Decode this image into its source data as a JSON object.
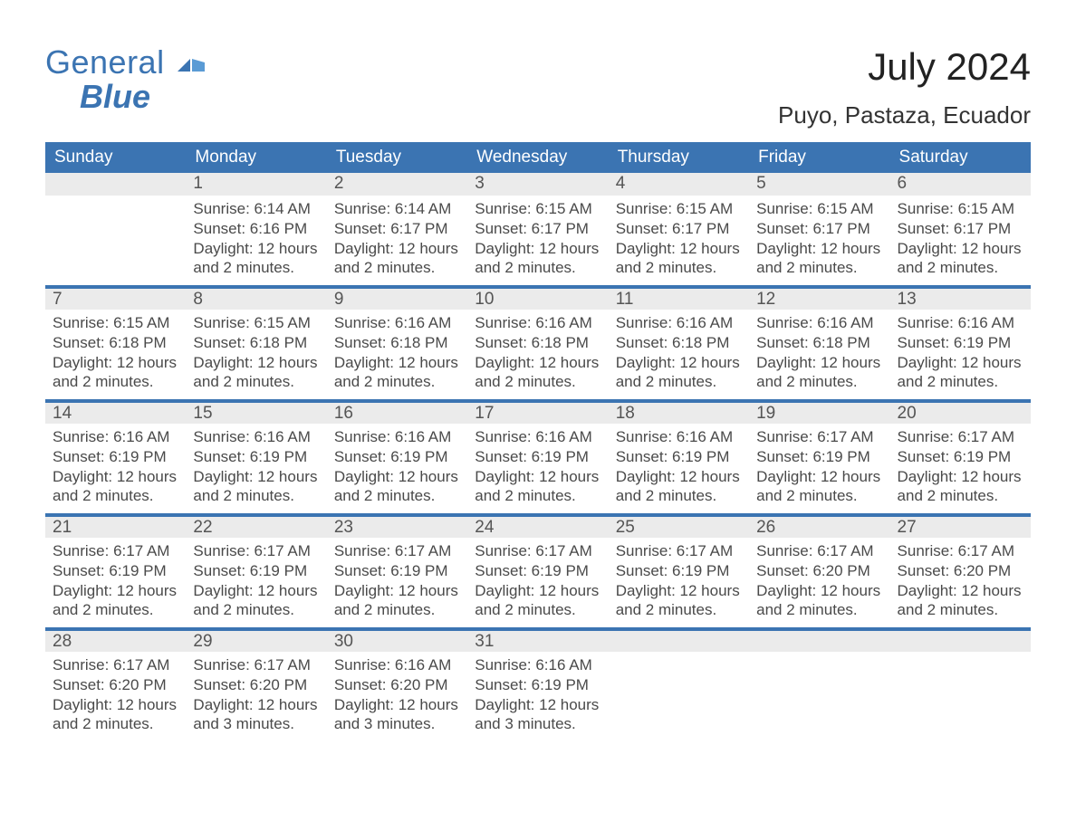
{
  "brand": {
    "word1": "General",
    "word2": "Blue"
  },
  "title": "July 2024",
  "location": "Puyo, Pastaza, Ecuador",
  "colors": {
    "brand_blue": "#3b74b2",
    "header_bg": "#3b74b2",
    "header_text": "#ffffff",
    "date_strip_bg": "#ebebeb",
    "rule_blue": "#3b74b2",
    "body_text": "#4a4a4a",
    "page_bg": "#ffffff"
  },
  "typography": {
    "title_fontsize_pt": 32,
    "location_fontsize_pt": 20,
    "weekday_fontsize_pt": 14,
    "date_fontsize_pt": 14,
    "cell_fontsize_pt": 13
  },
  "layout": {
    "type": "calendar-table",
    "columns": 7,
    "rows": 5,
    "first_weekday": "Sunday",
    "leading_blanks": 1
  },
  "weekdays": [
    "Sunday",
    "Monday",
    "Tuesday",
    "Wednesday",
    "Thursday",
    "Friday",
    "Saturday"
  ],
  "days": [
    {
      "date": "1",
      "sunrise": "Sunrise: 6:14 AM",
      "sunset": "Sunset: 6:16 PM",
      "daylight": "Daylight: 12 hours and 2 minutes."
    },
    {
      "date": "2",
      "sunrise": "Sunrise: 6:14 AM",
      "sunset": "Sunset: 6:17 PM",
      "daylight": "Daylight: 12 hours and 2 minutes."
    },
    {
      "date": "3",
      "sunrise": "Sunrise: 6:15 AM",
      "sunset": "Sunset: 6:17 PM",
      "daylight": "Daylight: 12 hours and 2 minutes."
    },
    {
      "date": "4",
      "sunrise": "Sunrise: 6:15 AM",
      "sunset": "Sunset: 6:17 PM",
      "daylight": "Daylight: 12 hours and 2 minutes."
    },
    {
      "date": "5",
      "sunrise": "Sunrise: 6:15 AM",
      "sunset": "Sunset: 6:17 PM",
      "daylight": "Daylight: 12 hours and 2 minutes."
    },
    {
      "date": "6",
      "sunrise": "Sunrise: 6:15 AM",
      "sunset": "Sunset: 6:17 PM",
      "daylight": "Daylight: 12 hours and 2 minutes."
    },
    {
      "date": "7",
      "sunrise": "Sunrise: 6:15 AM",
      "sunset": "Sunset: 6:18 PM",
      "daylight": "Daylight: 12 hours and 2 minutes."
    },
    {
      "date": "8",
      "sunrise": "Sunrise: 6:15 AM",
      "sunset": "Sunset: 6:18 PM",
      "daylight": "Daylight: 12 hours and 2 minutes."
    },
    {
      "date": "9",
      "sunrise": "Sunrise: 6:16 AM",
      "sunset": "Sunset: 6:18 PM",
      "daylight": "Daylight: 12 hours and 2 minutes."
    },
    {
      "date": "10",
      "sunrise": "Sunrise: 6:16 AM",
      "sunset": "Sunset: 6:18 PM",
      "daylight": "Daylight: 12 hours and 2 minutes."
    },
    {
      "date": "11",
      "sunrise": "Sunrise: 6:16 AM",
      "sunset": "Sunset: 6:18 PM",
      "daylight": "Daylight: 12 hours and 2 minutes."
    },
    {
      "date": "12",
      "sunrise": "Sunrise: 6:16 AM",
      "sunset": "Sunset: 6:18 PM",
      "daylight": "Daylight: 12 hours and 2 minutes."
    },
    {
      "date": "13",
      "sunrise": "Sunrise: 6:16 AM",
      "sunset": "Sunset: 6:19 PM",
      "daylight": "Daylight: 12 hours and 2 minutes."
    },
    {
      "date": "14",
      "sunrise": "Sunrise: 6:16 AM",
      "sunset": "Sunset: 6:19 PM",
      "daylight": "Daylight: 12 hours and 2 minutes."
    },
    {
      "date": "15",
      "sunrise": "Sunrise: 6:16 AM",
      "sunset": "Sunset: 6:19 PM",
      "daylight": "Daylight: 12 hours and 2 minutes."
    },
    {
      "date": "16",
      "sunrise": "Sunrise: 6:16 AM",
      "sunset": "Sunset: 6:19 PM",
      "daylight": "Daylight: 12 hours and 2 minutes."
    },
    {
      "date": "17",
      "sunrise": "Sunrise: 6:16 AM",
      "sunset": "Sunset: 6:19 PM",
      "daylight": "Daylight: 12 hours and 2 minutes."
    },
    {
      "date": "18",
      "sunrise": "Sunrise: 6:16 AM",
      "sunset": "Sunset: 6:19 PM",
      "daylight": "Daylight: 12 hours and 2 minutes."
    },
    {
      "date": "19",
      "sunrise": "Sunrise: 6:17 AM",
      "sunset": "Sunset: 6:19 PM",
      "daylight": "Daylight: 12 hours and 2 minutes."
    },
    {
      "date": "20",
      "sunrise": "Sunrise: 6:17 AM",
      "sunset": "Sunset: 6:19 PM",
      "daylight": "Daylight: 12 hours and 2 minutes."
    },
    {
      "date": "21",
      "sunrise": "Sunrise: 6:17 AM",
      "sunset": "Sunset: 6:19 PM",
      "daylight": "Daylight: 12 hours and 2 minutes."
    },
    {
      "date": "22",
      "sunrise": "Sunrise: 6:17 AM",
      "sunset": "Sunset: 6:19 PM",
      "daylight": "Daylight: 12 hours and 2 minutes."
    },
    {
      "date": "23",
      "sunrise": "Sunrise: 6:17 AM",
      "sunset": "Sunset: 6:19 PM",
      "daylight": "Daylight: 12 hours and 2 minutes."
    },
    {
      "date": "24",
      "sunrise": "Sunrise: 6:17 AM",
      "sunset": "Sunset: 6:19 PM",
      "daylight": "Daylight: 12 hours and 2 minutes."
    },
    {
      "date": "25",
      "sunrise": "Sunrise: 6:17 AM",
      "sunset": "Sunset: 6:19 PM",
      "daylight": "Daylight: 12 hours and 2 minutes."
    },
    {
      "date": "26",
      "sunrise": "Sunrise: 6:17 AM",
      "sunset": "Sunset: 6:20 PM",
      "daylight": "Daylight: 12 hours and 2 minutes."
    },
    {
      "date": "27",
      "sunrise": "Sunrise: 6:17 AM",
      "sunset": "Sunset: 6:20 PM",
      "daylight": "Daylight: 12 hours and 2 minutes."
    },
    {
      "date": "28",
      "sunrise": "Sunrise: 6:17 AM",
      "sunset": "Sunset: 6:20 PM",
      "daylight": "Daylight: 12 hours and 2 minutes."
    },
    {
      "date": "29",
      "sunrise": "Sunrise: 6:17 AM",
      "sunset": "Sunset: 6:20 PM",
      "daylight": "Daylight: 12 hours and 3 minutes."
    },
    {
      "date": "30",
      "sunrise": "Sunrise: 6:16 AM",
      "sunset": "Sunset: 6:20 PM",
      "daylight": "Daylight: 12 hours and 3 minutes."
    },
    {
      "date": "31",
      "sunrise": "Sunrise: 6:16 AM",
      "sunset": "Sunset: 6:19 PM",
      "daylight": "Daylight: 12 hours and 3 minutes."
    }
  ]
}
